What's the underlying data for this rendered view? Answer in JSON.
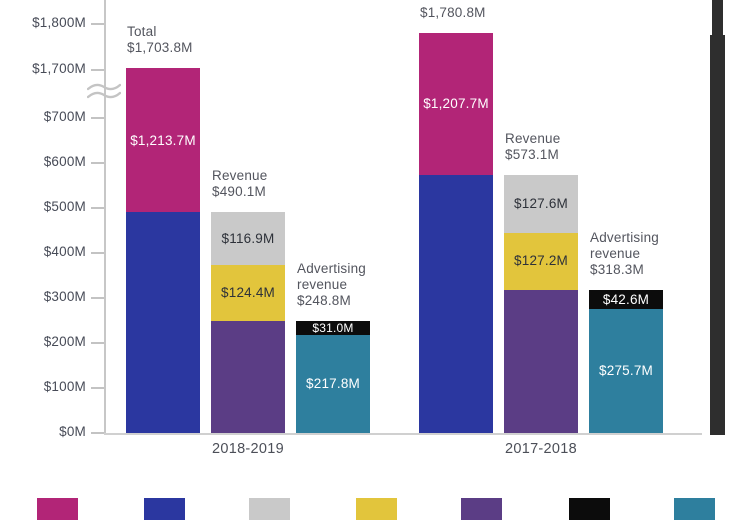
{
  "chart_data": {
    "type": "bar",
    "title": "",
    "description": "Stacked bar chart of revenue in $M with broken y-axis, two fiscal-year groups",
    "y_axis": {
      "unit": "$M",
      "has_axis_break": true,
      "break_between_values": [
        700,
        1700
      ],
      "ticks": [
        {
          "label": "$1,800M",
          "value": 1800
        },
        {
          "label": "$1,700M",
          "value": 1700
        },
        {
          "label": "$700M",
          "value": 700
        },
        {
          "label": "$600M",
          "value": 600
        },
        {
          "label": "$500M",
          "value": 500
        },
        {
          "label": "$400M",
          "value": 400
        },
        {
          "label": "$300M",
          "value": 300
        },
        {
          "label": "$200M",
          "value": 200
        },
        {
          "label": "$100M",
          "value": 100
        },
        {
          "label": "$0M",
          "value": 0
        }
      ]
    },
    "colors": {
      "pink": "#b22577",
      "blue": "#2b37a0",
      "gray": "#c9c9c9",
      "yellow": "#e2c53c",
      "purple": "#5b3d85",
      "black": "#0c0c0c",
      "teal": "#2e7f9e"
    },
    "segment_text_colors": {
      "pink": "#ffffff",
      "blue": "#ffffff",
      "gray": "#2d3139",
      "yellow": "#2d3139",
      "purple": "#ffffff",
      "black": "#ffffff",
      "teal": "#ffffff"
    },
    "groups": [
      {
        "x_label": "2018-2019",
        "bars": [
          {
            "name": "total",
            "annotation_lines": [
              "Total",
              "$1,703.8M"
            ],
            "total_value": 1703.8,
            "segments": [
              {
                "color": "blue",
                "value": 490.1,
                "label": null
              },
              {
                "color": "pink",
                "value": 1213.7,
                "label": "$1,213.7M"
              }
            ]
          },
          {
            "name": "revenue",
            "annotation_lines": [
              "Revenue",
              "$490.1M"
            ],
            "total_value": 490.1,
            "segments": [
              {
                "color": "purple",
                "value": 248.8,
                "label": null
              },
              {
                "color": "yellow",
                "value": 124.4,
                "label": "$124.4M"
              },
              {
                "color": "gray",
                "value": 116.9,
                "label": "$116.9M"
              }
            ]
          },
          {
            "name": "advertising-revenue",
            "annotation_lines": [
              "Advertising",
              "revenue",
              "$248.8M"
            ],
            "total_value": 248.8,
            "segments": [
              {
                "color": "teal",
                "value": 217.8,
                "label": "$217.8M"
              },
              {
                "color": "black",
                "value": 31.0,
                "label": "$31.0M"
              }
            ]
          }
        ]
      },
      {
        "x_label": "2017-2018",
        "bars": [
          {
            "name": "total",
            "annotation_lines": [
              "$1,780.8M"
            ],
            "total_value": 1780.8,
            "segments": [
              {
                "color": "blue",
                "value": 573.1,
                "label": null
              },
              {
                "color": "pink",
                "value": 1207.7,
                "label": "$1,207.7M"
              }
            ]
          },
          {
            "name": "revenue",
            "annotation_lines": [
              "Revenue",
              "$573.1M"
            ],
            "total_value": 573.1,
            "segments": [
              {
                "color": "purple",
                "value": 318.3,
                "label": null
              },
              {
                "color": "yellow",
                "value": 127.2,
                "label": "$127.2M"
              },
              {
                "color": "gray",
                "value": 127.6,
                "label": "$127.6M"
              }
            ]
          },
          {
            "name": "advertising-revenue",
            "annotation_lines": [
              "Advertising",
              "revenue",
              "$318.3M"
            ],
            "total_value": 318.3,
            "segments": [
              {
                "color": "teal",
                "value": 275.7,
                "label": "$275.7M"
              },
              {
                "color": "black",
                "value": 42.6,
                "label": "$42.6M"
              }
            ]
          }
        ]
      }
    ],
    "legend": {
      "swatch_color_keys": [
        "pink",
        "blue",
        "gray",
        "yellow",
        "purple",
        "black",
        "teal"
      ]
    },
    "decorations": {
      "right_cropped_bar_color": "#2e2e2e",
      "axis_color": "#c7c7c7"
    }
  }
}
